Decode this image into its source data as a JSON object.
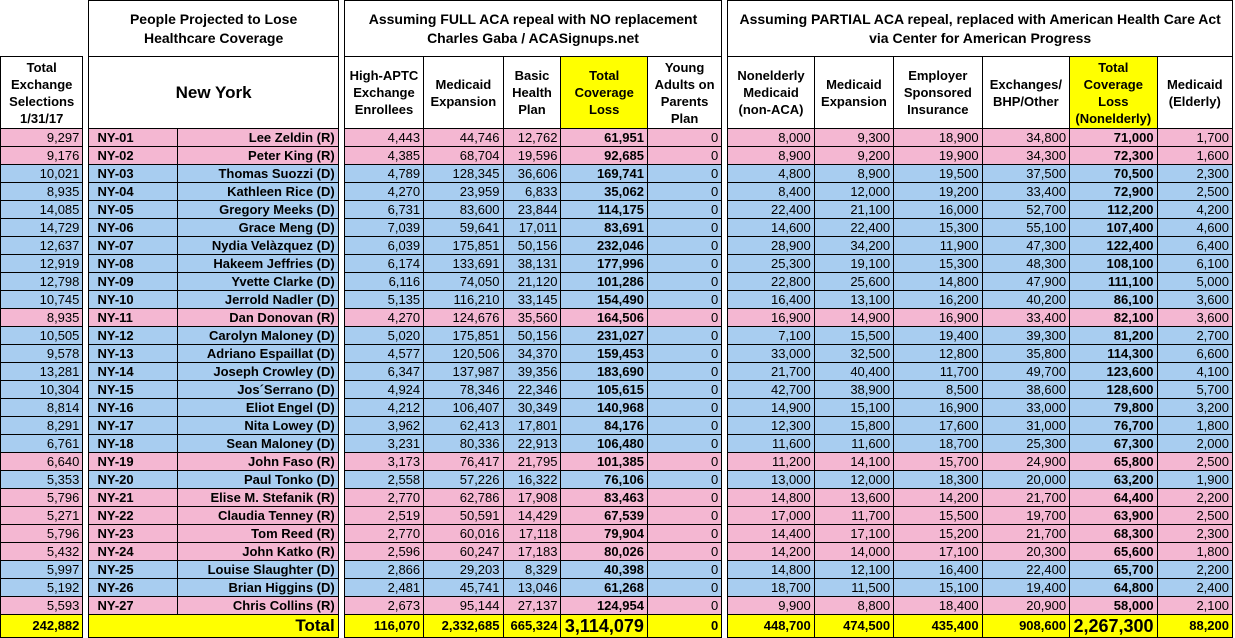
{
  "headers": {
    "group_people": "People Projected to Lose Healthcare Coverage",
    "group_full": "Assuming FULL ACA repeal with NO replacement\nCharles Gaba / ACASignups.net",
    "group_partial": "Assuming PARTIAL ACA repeal, replaced with American Health Care Act\nvia Center for American Progress",
    "total_exchange": "Total Exchange Selections 1/31/17",
    "state": "New York",
    "full_cols": [
      "High-APTC Exchange Enrollees",
      "Medicaid Expansion",
      "Basic Health Plan",
      "Total Coverage Loss",
      "Young Adults on Parents Plan"
    ],
    "partial_cols": [
      "Nonelderly Medicaid (non-ACA)",
      "Medicaid Expansion",
      "Employer Sponsored Insurance",
      "Exchanges/ BHP/Other",
      "Total Coverage Loss (Nonelderly)",
      "Medicaid (Elderly)"
    ]
  },
  "colors": {
    "pink": "#f4b7d2",
    "blue": "#a8cdf0",
    "yellow": "#ffff00"
  },
  "rows": [
    {
      "exch": "9,297",
      "dist": "NY-01",
      "name": "Lee Zeldin (R)",
      "party": "R",
      "aptc": "4,443",
      "mexp": "44,746",
      "bhp": "12,762",
      "loss": "61,951",
      "young": "0",
      "nm": "8,000",
      "me2": "9,300",
      "esi": "18,900",
      "ex": "34,800",
      "tot": "71,000",
      "eld": "1,700"
    },
    {
      "exch": "9,176",
      "dist": "NY-02",
      "name": "Peter King (R)",
      "party": "R",
      "aptc": "4,385",
      "mexp": "68,704",
      "bhp": "19,596",
      "loss": "92,685",
      "young": "0",
      "nm": "8,900",
      "me2": "9,200",
      "esi": "19,900",
      "ex": "34,300",
      "tot": "72,300",
      "eld": "1,600"
    },
    {
      "exch": "10,021",
      "dist": "NY-03",
      "name": "Thomas Suozzi (D)",
      "party": "D",
      "aptc": "4,789",
      "mexp": "128,345",
      "bhp": "36,606",
      "loss": "169,741",
      "young": "0",
      "nm": "4,800",
      "me2": "8,900",
      "esi": "19,500",
      "ex": "37,500",
      "tot": "70,500",
      "eld": "2,300"
    },
    {
      "exch": "8,935",
      "dist": "NY-04",
      "name": "Kathleen Rice (D)",
      "party": "D",
      "aptc": "4,270",
      "mexp": "23,959",
      "bhp": "6,833",
      "loss": "35,062",
      "young": "0",
      "nm": "8,400",
      "me2": "12,000",
      "esi": "19,200",
      "ex": "33,400",
      "tot": "72,900",
      "eld": "2,500"
    },
    {
      "exch": "14,085",
      "dist": "NY-05",
      "name": "Gregory Meeks (D)",
      "party": "D",
      "aptc": "6,731",
      "mexp": "83,600",
      "bhp": "23,844",
      "loss": "114,175",
      "young": "0",
      "nm": "22,400",
      "me2": "21,100",
      "esi": "16,000",
      "ex": "52,700",
      "tot": "112,200",
      "eld": "4,200"
    },
    {
      "exch": "14,729",
      "dist": "NY-06",
      "name": "Grace Meng (D)",
      "party": "D",
      "aptc": "7,039",
      "mexp": "59,641",
      "bhp": "17,011",
      "loss": "83,691",
      "young": "0",
      "nm": "14,600",
      "me2": "22,400",
      "esi": "15,300",
      "ex": "55,100",
      "tot": "107,400",
      "eld": "4,600"
    },
    {
      "exch": "12,637",
      "dist": "NY-07",
      "name": "Nydia Velàzquez (D)",
      "party": "D",
      "aptc": "6,039",
      "mexp": "175,851",
      "bhp": "50,156",
      "loss": "232,046",
      "young": "0",
      "nm": "28,900",
      "me2": "34,200",
      "esi": "11,900",
      "ex": "47,300",
      "tot": "122,400",
      "eld": "6,400"
    },
    {
      "exch": "12,919",
      "dist": "NY-08",
      "name": "Hakeem Jeffries (D)",
      "party": "D",
      "aptc": "6,174",
      "mexp": "133,691",
      "bhp": "38,131",
      "loss": "177,996",
      "young": "0",
      "nm": "25,300",
      "me2": "19,100",
      "esi": "15,300",
      "ex": "48,300",
      "tot": "108,100",
      "eld": "6,100"
    },
    {
      "exch": "12,798",
      "dist": "NY-09",
      "name": "Yvette Clarke (D)",
      "party": "D",
      "aptc": "6,116",
      "mexp": "74,050",
      "bhp": "21,120",
      "loss": "101,286",
      "young": "0",
      "nm": "22,800",
      "me2": "25,600",
      "esi": "14,800",
      "ex": "47,900",
      "tot": "111,100",
      "eld": "5,000"
    },
    {
      "exch": "10,745",
      "dist": "NY-10",
      "name": "Jerrold Nadler (D)",
      "party": "D",
      "aptc": "5,135",
      "mexp": "116,210",
      "bhp": "33,145",
      "loss": "154,490",
      "young": "0",
      "nm": "16,400",
      "me2": "13,100",
      "esi": "16,200",
      "ex": "40,200",
      "tot": "86,100",
      "eld": "3,600"
    },
    {
      "exch": "8,935",
      "dist": "NY-11",
      "name": "Dan Donovan (R)",
      "party": "R",
      "aptc": "4,270",
      "mexp": "124,676",
      "bhp": "35,560",
      "loss": "164,506",
      "young": "0",
      "nm": "16,900",
      "me2": "14,900",
      "esi": "16,900",
      "ex": "33,400",
      "tot": "82,100",
      "eld": "3,600"
    },
    {
      "exch": "10,505",
      "dist": "NY-12",
      "name": "Carolyn Maloney (D)",
      "party": "D",
      "aptc": "5,020",
      "mexp": "175,851",
      "bhp": "50,156",
      "loss": "231,027",
      "young": "0",
      "nm": "7,100",
      "me2": "15,500",
      "esi": "19,400",
      "ex": "39,300",
      "tot": "81,200",
      "eld": "2,700"
    },
    {
      "exch": "9,578",
      "dist": "NY-13",
      "name": "Adriano Espaillat (D)",
      "party": "D",
      "aptc": "4,577",
      "mexp": "120,506",
      "bhp": "34,370",
      "loss": "159,453",
      "young": "0",
      "nm": "33,000",
      "me2": "32,500",
      "esi": "12,800",
      "ex": "35,800",
      "tot": "114,300",
      "eld": "6,600"
    },
    {
      "exch": "13,281",
      "dist": "NY-14",
      "name": "Joseph Crowley (D)",
      "party": "D",
      "aptc": "6,347",
      "mexp": "137,987",
      "bhp": "39,356",
      "loss": "183,690",
      "young": "0",
      "nm": "21,700",
      "me2": "40,400",
      "esi": "11,700",
      "ex": "49,700",
      "tot": "123,600",
      "eld": "4,100"
    },
    {
      "exch": "10,304",
      "dist": "NY-15",
      "name": "Jos´Serrano (D)",
      "party": "D",
      "aptc": "4,924",
      "mexp": "78,346",
      "bhp": "22,346",
      "loss": "105,615",
      "young": "0",
      "nm": "42,700",
      "me2": "38,900",
      "esi": "8,500",
      "ex": "38,600",
      "tot": "128,600",
      "eld": "5,700"
    },
    {
      "exch": "8,814",
      "dist": "NY-16",
      "name": "Eliot Engel (D)",
      "party": "D",
      "aptc": "4,212",
      "mexp": "106,407",
      "bhp": "30,349",
      "loss": "140,968",
      "young": "0",
      "nm": "14,900",
      "me2": "15,100",
      "esi": "16,900",
      "ex": "33,000",
      "tot": "79,800",
      "eld": "3,200"
    },
    {
      "exch": "8,291",
      "dist": "NY-17",
      "name": "Nita Lowey (D)",
      "party": "D",
      "aptc": "3,962",
      "mexp": "62,413",
      "bhp": "17,801",
      "loss": "84,176",
      "young": "0",
      "nm": "12,300",
      "me2": "15,800",
      "esi": "17,600",
      "ex": "31,000",
      "tot": "76,700",
      "eld": "1,800"
    },
    {
      "exch": "6,761",
      "dist": "NY-18",
      "name": "Sean Maloney (D)",
      "party": "D",
      "aptc": "3,231",
      "mexp": "80,336",
      "bhp": "22,913",
      "loss": "106,480",
      "young": "0",
      "nm": "11,600",
      "me2": "11,600",
      "esi": "18,700",
      "ex": "25,300",
      "tot": "67,300",
      "eld": "2,000"
    },
    {
      "exch": "6,640",
      "dist": "NY-19",
      "name": "John Faso (R)",
      "party": "R",
      "aptc": "3,173",
      "mexp": "76,417",
      "bhp": "21,795",
      "loss": "101,385",
      "young": "0",
      "nm": "11,200",
      "me2": "14,100",
      "esi": "15,700",
      "ex": "24,900",
      "tot": "65,800",
      "eld": "2,500"
    },
    {
      "exch": "5,353",
      "dist": "NY-20",
      "name": "Paul Tonko (D)",
      "party": "D",
      "aptc": "2,558",
      "mexp": "57,226",
      "bhp": "16,322",
      "loss": "76,106",
      "young": "0",
      "nm": "13,000",
      "me2": "12,000",
      "esi": "18,300",
      "ex": "20,000",
      "tot": "63,200",
      "eld": "1,900"
    },
    {
      "exch": "5,796",
      "dist": "NY-21",
      "name": "Elise M. Stefanik (R)",
      "party": "R",
      "aptc": "2,770",
      "mexp": "62,786",
      "bhp": "17,908",
      "loss": "83,463",
      "young": "0",
      "nm": "14,800",
      "me2": "13,600",
      "esi": "14,200",
      "ex": "21,700",
      "tot": "64,400",
      "eld": "2,200"
    },
    {
      "exch": "5,271",
      "dist": "NY-22",
      "name": "Claudia Tenney (R)",
      "party": "R",
      "aptc": "2,519",
      "mexp": "50,591",
      "bhp": "14,429",
      "loss": "67,539",
      "young": "0",
      "nm": "17,000",
      "me2": "11,700",
      "esi": "15,500",
      "ex": "19,700",
      "tot": "63,900",
      "eld": "2,500"
    },
    {
      "exch": "5,796",
      "dist": "NY-23",
      "name": "Tom Reed (R)",
      "party": "R",
      "aptc": "2,770",
      "mexp": "60,016",
      "bhp": "17,118",
      "loss": "79,904",
      "young": "0",
      "nm": "14,400",
      "me2": "17,100",
      "esi": "15,200",
      "ex": "21,700",
      "tot": "68,300",
      "eld": "2,300"
    },
    {
      "exch": "5,432",
      "dist": "NY-24",
      "name": "John Katko (R)",
      "party": "R",
      "aptc": "2,596",
      "mexp": "60,247",
      "bhp": "17,183",
      "loss": "80,026",
      "young": "0",
      "nm": "14,200",
      "me2": "14,000",
      "esi": "17,100",
      "ex": "20,300",
      "tot": "65,600",
      "eld": "1,800"
    },
    {
      "exch": "5,997",
      "dist": "NY-25",
      "name": "Louise Slaughter (D)",
      "party": "D",
      "aptc": "2,866",
      "mexp": "29,203",
      "bhp": "8,329",
      "loss": "40,398",
      "young": "0",
      "nm": "14,800",
      "me2": "12,100",
      "esi": "16,400",
      "ex": "22,400",
      "tot": "65,700",
      "eld": "2,200"
    },
    {
      "exch": "5,192",
      "dist": "NY-26",
      "name": "Brian Higgins (D)",
      "party": "D",
      "aptc": "2,481",
      "mexp": "45,741",
      "bhp": "13,046",
      "loss": "61,268",
      "young": "0",
      "nm": "18,700",
      "me2": "11,500",
      "esi": "15,100",
      "ex": "19,400",
      "tot": "64,800",
      "eld": "2,400"
    },
    {
      "exch": "5,593",
      "dist": "NY-27",
      "name": "Chris Collins (R)",
      "party": "R",
      "aptc": "2,673",
      "mexp": "95,144",
      "bhp": "27,137",
      "loss": "124,954",
      "young": "0",
      "nm": "9,900",
      "me2": "8,800",
      "esi": "18,400",
      "ex": "20,900",
      "tot": "58,000",
      "eld": "2,100"
    }
  ],
  "totals": {
    "exch": "242,882",
    "label": "Total",
    "aptc": "116,070",
    "mexp": "2,332,685",
    "bhp": "665,324",
    "loss": "3,114,079",
    "young": "0",
    "nm": "448,700",
    "me2": "474,500",
    "esi": "435,400",
    "ex": "908,600",
    "tot": "2,267,300",
    "eld": "88,200"
  }
}
